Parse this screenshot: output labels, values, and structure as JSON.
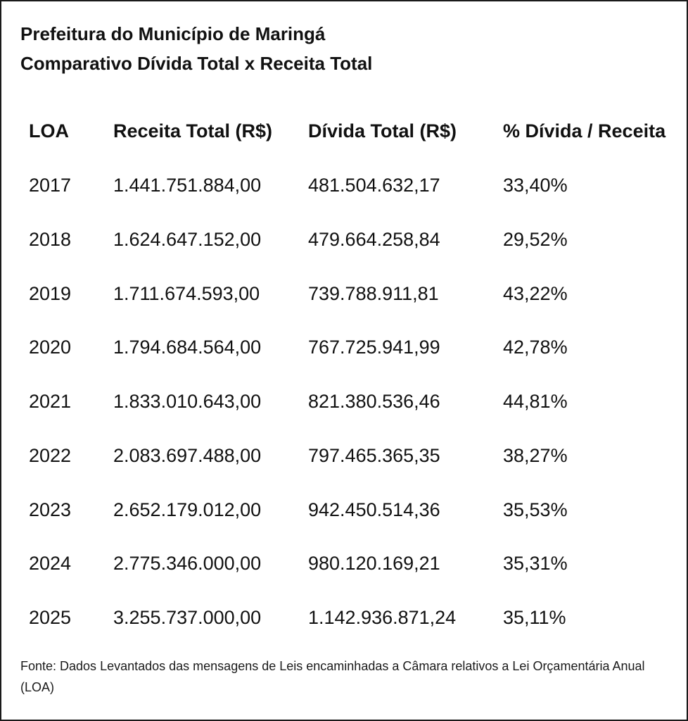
{
  "title": "Prefeitura do Município de Maringá",
  "subtitle": "Comparativo Dívida Total x Receita Total",
  "chart_data": {
    "type": "table",
    "columns": [
      "LOA",
      "Receita Total (R$)",
      "Dívida Total (R$)",
      "% Dívida / Receita"
    ],
    "rows": [
      [
        "2017",
        "1.441.751.884,00",
        "481.504.632,17",
        "33,40%"
      ],
      [
        "2018",
        "1.624.647.152,00",
        "479.664.258,84",
        "29,52%"
      ],
      [
        "2019",
        "1.711.674.593,00",
        "739.788.911,81",
        "43,22%"
      ],
      [
        "2020",
        "1.794.684.564,00",
        "767.725.941,99",
        "42,78%"
      ],
      [
        "2021",
        "1.833.010.643,00",
        "821.380.536,46",
        "44,81%"
      ],
      [
        "2022",
        "2.083.697.488,00",
        "797.465.365,35",
        "38,27%"
      ],
      [
        "2023",
        "2.652.179.012,00",
        "942.450.514,36",
        "35,53%"
      ],
      [
        "2024",
        "2.775.346.000,00",
        "980.120.169,21",
        "35,31%"
      ],
      [
        "2025",
        "3.255.737.000,00",
        "1.142.936.871,24",
        "35,11%"
      ]
    ]
  },
  "footnote": "Fonte: Dados Levantados das mensagens de Leis encaminhadas a Câmara relativos a Lei Orçamentária Anual (LOA)"
}
